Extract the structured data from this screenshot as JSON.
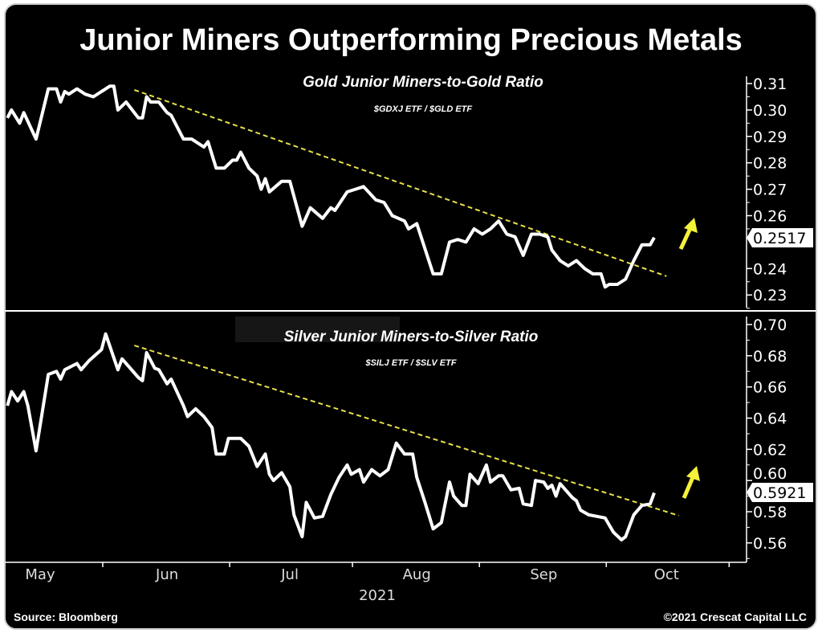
{
  "title": "Junior Miners Outperforming Precious Metals",
  "source": "Source: Bloomberg",
  "copyright": "©2021 Crescat Capital LLC",
  "colors": {
    "background": "#000000",
    "line": "#ffffff",
    "trend": "#e6e04a",
    "arrow": "#f5f03a"
  },
  "chart_data": [
    {
      "type": "line",
      "title": "Gold Junior Miners-to-Gold Ratio",
      "subtitle": "$GDXJ ETF / $GLD ETF",
      "x_unit": "days since May 1, 2021",
      "xlim": [
        -8,
        172
      ],
      "ylim": [
        0.225,
        0.315
      ],
      "yticks": [
        "0.31",
        "0.30",
        "0.29",
        "0.28",
        "0.27",
        "0.26",
        "0.24",
        "0.23"
      ],
      "ytick_values": [
        0.31,
        0.3,
        0.29,
        0.28,
        0.27,
        0.26,
        0.24,
        0.23
      ],
      "last_value_label": "0.2517",
      "last_value": 0.2517,
      "trendline": [
        [
          23,
          0.3076
        ],
        [
          153,
          0.2371
        ]
      ],
      "series": [
        {
          "name": "GDXJ/GLD",
          "points": [
            [
              -8,
              0.297
            ],
            [
              -7,
              0.3
            ],
            [
              -5,
              0.295
            ],
            [
              -4,
              0.299
            ],
            [
              -1,
              0.289
            ],
            [
              2,
              0.308
            ],
            [
              4,
              0.308
            ],
            [
              5,
              0.303
            ],
            [
              6,
              0.307
            ],
            [
              7,
              0.306
            ],
            [
              9,
              0.308
            ],
            [
              11,
              0.306
            ],
            [
              13,
              0.305
            ],
            [
              17,
              0.309
            ],
            [
              18,
              0.309
            ],
            [
              19,
              0.3
            ],
            [
              21,
              0.303
            ],
            [
              22,
              0.301
            ],
            [
              24,
              0.297
            ],
            [
              25,
              0.297
            ],
            [
              26,
              0.305
            ],
            [
              27,
              0.303
            ],
            [
              29,
              0.303
            ],
            [
              31,
              0.299
            ],
            [
              32,
              0.298
            ],
            [
              35,
              0.289
            ],
            [
              37,
              0.289
            ],
            [
              40,
              0.286
            ],
            [
              41,
              0.288
            ],
            [
              43,
              0.278
            ],
            [
              45,
              0.278
            ],
            [
              47,
              0.281
            ],
            [
              48,
              0.281
            ],
            [
              49,
              0.284
            ],
            [
              51,
              0.278
            ],
            [
              53,
              0.275
            ],
            [
              54,
              0.27
            ],
            [
              55,
              0.274
            ],
            [
              56,
              0.269
            ],
            [
              59,
              0.273
            ],
            [
              61,
              0.273
            ],
            [
              64,
              0.256
            ],
            [
              66,
              0.263
            ],
            [
              69,
              0.259
            ],
            [
              71,
              0.263
            ],
            [
              72,
              0.262
            ],
            [
              75,
              0.269
            ],
            [
              77,
              0.27
            ],
            [
              79,
              0.271
            ],
            [
              82,
              0.266
            ],
            [
              84,
              0.265
            ],
            [
              86,
              0.26
            ],
            [
              89,
              0.258
            ],
            [
              90,
              0.255
            ],
            [
              92,
              0.257
            ],
            [
              96,
              0.238
            ],
            [
              98,
              0.238
            ],
            [
              100,
              0.25
            ],
            [
              102,
              0.251
            ],
            [
              104,
              0.25
            ],
            [
              106,
              0.255
            ],
            [
              108,
              0.253
            ],
            [
              110,
              0.255
            ],
            [
              112,
              0.258
            ],
            [
              114,
              0.253
            ],
            [
              116,
              0.252
            ],
            [
              118,
              0.245
            ],
            [
              120,
              0.253
            ],
            [
              122,
              0.253
            ],
            [
              124,
              0.252
            ],
            [
              125,
              0.247
            ],
            [
              127,
              0.243
            ],
            [
              129,
              0.241
            ],
            [
              131,
              0.243
            ],
            [
              133,
              0.24
            ],
            [
              135,
              0.238
            ],
            [
              137,
              0.238
            ],
            [
              138,
              0.233
            ],
            [
              139,
              0.234
            ],
            [
              141,
              0.234
            ],
            [
              143,
              0.236
            ],
            [
              145,
              0.243
            ],
            [
              147,
              0.249
            ],
            [
              149,
              0.249
            ],
            [
              150,
              0.2517
            ]
          ]
        }
      ]
    },
    {
      "type": "line",
      "title": "Silver Junior Miners-to-Silver Ratio",
      "subtitle": "$SILJ ETF / $SLV ETF",
      "x_unit": "days since May 1, 2021",
      "xlim": [
        -8,
        172
      ],
      "ylim": [
        0.55,
        0.705
      ],
      "yticks": [
        "0.70",
        "0.68",
        "0.66",
        "0.64",
        "0.62",
        "0.60",
        "0.58",
        "0.56"
      ],
      "ytick_values": [
        0.7,
        0.68,
        0.66,
        0.64,
        0.62,
        0.6,
        0.58,
        0.56
      ],
      "last_value_label": "0.5921",
      "last_value": 0.5921,
      "trendline": [
        [
          23,
          0.6866
        ],
        [
          156,
          0.5775
        ]
      ],
      "xticks": [
        "May",
        "Jun",
        "Jul",
        "Aug",
        "Sep",
        "Oct"
      ],
      "xtick_values": [
        0,
        31,
        61,
        92,
        123,
        153
      ],
      "xlabel": "2021",
      "series": [
        {
          "name": "SILJ/SLV",
          "points": [
            [
              -8,
              0.648
            ],
            [
              -7,
              0.657
            ],
            [
              -5.5,
              0.651
            ],
            [
              -4,
              0.657
            ],
            [
              -3,
              0.648
            ],
            [
              -1,
              0.619
            ],
            [
              2,
              0.668
            ],
            [
              4,
              0.67
            ],
            [
              5,
              0.665
            ],
            [
              6,
              0.671
            ],
            [
              9,
              0.675
            ],
            [
              10,
              0.671
            ],
            [
              12,
              0.677
            ],
            [
              15,
              0.684
            ],
            [
              16,
              0.694
            ],
            [
              19,
              0.671
            ],
            [
              20,
              0.678
            ],
            [
              24,
              0.666
            ],
            [
              25,
              0.664
            ],
            [
              26,
              0.682
            ],
            [
              28,
              0.672
            ],
            [
              29,
              0.671
            ],
            [
              31,
              0.662
            ],
            [
              32,
              0.665
            ],
            [
              35,
              0.648
            ],
            [
              36,
              0.641
            ],
            [
              38,
              0.646
            ],
            [
              40,
              0.641
            ],
            [
              42,
              0.634
            ],
            [
              43,
              0.617
            ],
            [
              45,
              0.617
            ],
            [
              46,
              0.627
            ],
            [
              49,
              0.627
            ],
            [
              51,
              0.622
            ],
            [
              53,
              0.609
            ],
            [
              55,
              0.617
            ],
            [
              56,
              0.604
            ],
            [
              57,
              0.6
            ],
            [
              59,
              0.605
            ],
            [
              61,
              0.596
            ],
            [
              62,
              0.578
            ],
            [
              64,
              0.564
            ],
            [
              65,
              0.586
            ],
            [
              67,
              0.576
            ],
            [
              69,
              0.577
            ],
            [
              71,
              0.591
            ],
            [
              73,
              0.602
            ],
            [
              75,
              0.61
            ],
            [
              76,
              0.604
            ],
            [
              78,
              0.607
            ],
            [
              79,
              0.599
            ],
            [
              81,
              0.607
            ],
            [
              83,
              0.603
            ],
            [
              85,
              0.607
            ],
            [
              87,
              0.624
            ],
            [
              89,
              0.617
            ],
            [
              91,
              0.617
            ],
            [
              92,
              0.602
            ],
            [
              94,
              0.586
            ],
            [
              96,
              0.569
            ],
            [
              98,
              0.573
            ],
            [
              100,
              0.599
            ],
            [
              101,
              0.59
            ],
            [
              103,
              0.584
            ],
            [
              104,
              0.584
            ],
            [
              105,
              0.604
            ],
            [
              107,
              0.598
            ],
            [
              109,
              0.61
            ],
            [
              110,
              0.599
            ],
            [
              112,
              0.603
            ],
            [
              113,
              0.603
            ],
            [
              115,
              0.594
            ],
            [
              117,
              0.595
            ],
            [
              118,
              0.585
            ],
            [
              120,
              0.584
            ],
            [
              121,
              0.6
            ],
            [
              123,
              0.599
            ],
            [
              124,
              0.595
            ],
            [
              125,
              0.597
            ],
            [
              126,
              0.59
            ],
            [
              127,
              0.598
            ],
            [
              130,
              0.589
            ],
            [
              131,
              0.587
            ],
            [
              132,
              0.581
            ],
            [
              134,
              0.578
            ],
            [
              136,
              0.577
            ],
            [
              138,
              0.576
            ],
            [
              140,
              0.567
            ],
            [
              142,
              0.562
            ],
            [
              143,
              0.564
            ],
            [
              145,
              0.578
            ],
            [
              147,
              0.584
            ],
            [
              149,
              0.585
            ],
            [
              150,
              0.5921
            ]
          ]
        }
      ]
    }
  ]
}
